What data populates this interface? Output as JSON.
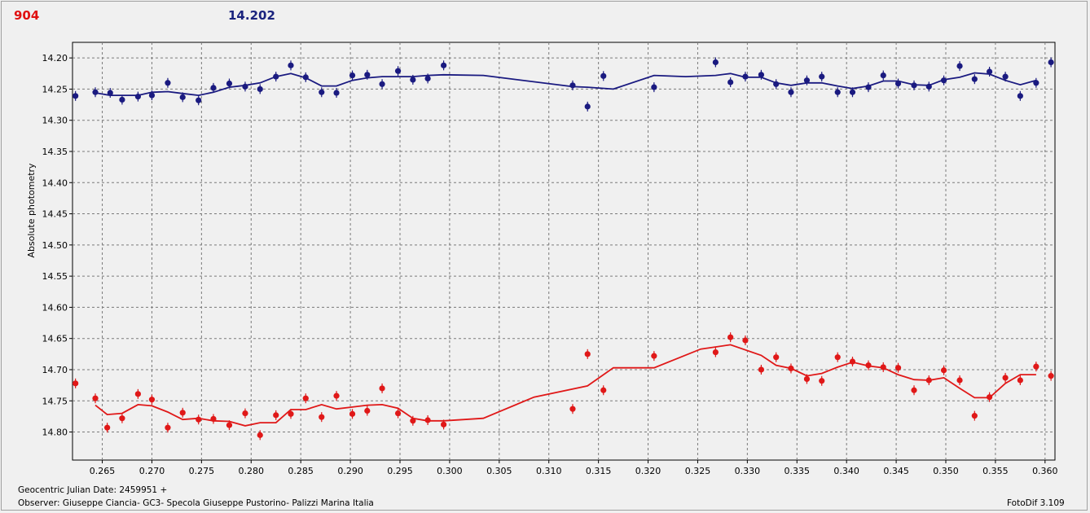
{
  "header": {
    "left_value": "904",
    "right_value": "14.202"
  },
  "footer": {
    "jd_label": "Geocentric Julian Date: 2459951 +",
    "observer": "Observer: Giuseppe Ciancia- GC3- Specola Giuseppe Pustorino- Palizzi Marina Italia",
    "software": "FotoDif 3.109"
  },
  "colors": {
    "blue_series": "#1a1a80",
    "red_series": "#e01818",
    "plot_background": "#f0f0f0",
    "grid": "#7a7a7a"
  },
  "chart_data": {
    "type": "scatter",
    "title": "",
    "xlabel": "",
    "ylabel": "Absolute photometry",
    "xlim": [
      0.262,
      0.361
    ],
    "ylim": [
      14.175,
      14.845
    ],
    "y_inverted": true,
    "grid": true,
    "x_ticks": [
      "0.265",
      "0.270",
      "0.275",
      "0.280",
      "0.285",
      "0.290",
      "0.295",
      "0.300",
      "0.305",
      "0.310",
      "0.315",
      "0.320",
      "0.325",
      "0.330",
      "0.335",
      "0.340",
      "0.345",
      "0.350",
      "0.355",
      "0.360"
    ],
    "y_ticks": [
      "14.20",
      "14.25",
      "14.30",
      "14.35",
      "14.40",
      "14.45",
      "14.50",
      "14.55",
      "14.60",
      "14.65",
      "14.70",
      "14.75",
      "14.80"
    ],
    "series": [
      {
        "color": "#1a1a80",
        "points": [
          [
            0.2623,
            14.261
          ],
          [
            0.2643,
            14.255
          ],
          [
            0.2658,
            14.256
          ],
          [
            0.267,
            14.267
          ],
          [
            0.2686,
            14.262
          ],
          [
            0.27,
            14.26
          ],
          [
            0.2716,
            14.24
          ],
          [
            0.2731,
            14.263
          ],
          [
            0.2747,
            14.268
          ],
          [
            0.2762,
            14.248
          ],
          [
            0.2778,
            14.241
          ],
          [
            0.2794,
            14.246
          ],
          [
            0.2809,
            14.25
          ],
          [
            0.2825,
            14.23
          ],
          [
            0.284,
            14.212
          ],
          [
            0.2855,
            14.231
          ],
          [
            0.2871,
            14.255
          ],
          [
            0.2886,
            14.256
          ],
          [
            0.2902,
            14.228
          ],
          [
            0.2917,
            14.227
          ],
          [
            0.2932,
            14.242
          ],
          [
            0.2948,
            14.221
          ],
          [
            0.2963,
            14.235
          ],
          [
            0.2978,
            14.233
          ],
          [
            0.2994,
            14.212
          ],
          [
            0.3124,
            14.244
          ],
          [
            0.3139,
            14.278
          ],
          [
            0.3155,
            14.229
          ],
          [
            0.3206,
            14.247
          ],
          [
            0.3268,
            14.207
          ],
          [
            0.3283,
            14.239
          ],
          [
            0.3298,
            14.23
          ],
          [
            0.3314,
            14.227
          ],
          [
            0.3329,
            14.242
          ],
          [
            0.3344,
            14.255
          ],
          [
            0.336,
            14.236
          ],
          [
            0.3375,
            14.23
          ],
          [
            0.3391,
            14.255
          ],
          [
            0.3406,
            14.255
          ],
          [
            0.3422,
            14.247
          ],
          [
            0.3437,
            14.228
          ],
          [
            0.3452,
            14.241
          ],
          [
            0.3468,
            14.244
          ],
          [
            0.3483,
            14.246
          ],
          [
            0.3498,
            14.236
          ],
          [
            0.3514,
            14.213
          ],
          [
            0.3529,
            14.234
          ],
          [
            0.3544,
            14.222
          ],
          [
            0.356,
            14.23
          ],
          [
            0.3575,
            14.261
          ],
          [
            0.3591,
            14.24
          ],
          [
            0.3606,
            14.207
          ]
        ],
        "trend": [
          [
            0.2643,
            14.256
          ],
          [
            0.2658,
            14.26
          ],
          [
            0.267,
            14.26
          ],
          [
            0.2686,
            14.26
          ],
          [
            0.27,
            14.255
          ],
          [
            0.2716,
            14.254
          ],
          [
            0.2731,
            14.257
          ],
          [
            0.2747,
            14.26
          ],
          [
            0.2762,
            14.255
          ],
          [
            0.2778,
            14.247
          ],
          [
            0.2794,
            14.244
          ],
          [
            0.2809,
            14.24
          ],
          [
            0.2825,
            14.23
          ],
          [
            0.284,
            14.225
          ],
          [
            0.2855,
            14.232
          ],
          [
            0.2871,
            14.245
          ],
          [
            0.2886,
            14.245
          ],
          [
            0.2902,
            14.236
          ],
          [
            0.2917,
            14.232
          ],
          [
            0.2932,
            14.23
          ],
          [
            0.2948,
            14.23
          ],
          [
            0.2963,
            14.23
          ],
          [
            0.2978,
            14.228
          ],
          [
            0.2994,
            14.227
          ],
          [
            0.3034,
            14.228
          ],
          [
            0.3124,
            14.246
          ],
          [
            0.3139,
            14.247
          ],
          [
            0.3165,
            14.25
          ],
          [
            0.3206,
            14.228
          ],
          [
            0.3238,
            14.23
          ],
          [
            0.3268,
            14.228
          ],
          [
            0.3283,
            14.225
          ],
          [
            0.3298,
            14.231
          ],
          [
            0.3314,
            14.231
          ],
          [
            0.3329,
            14.24
          ],
          [
            0.3344,
            14.244
          ],
          [
            0.336,
            14.24
          ],
          [
            0.3375,
            14.24
          ],
          [
            0.3391,
            14.245
          ],
          [
            0.3406,
            14.249
          ],
          [
            0.3422,
            14.245
          ],
          [
            0.3437,
            14.237
          ],
          [
            0.3452,
            14.237
          ],
          [
            0.3468,
            14.243
          ],
          [
            0.3483,
            14.244
          ],
          [
            0.3498,
            14.235
          ],
          [
            0.3514,
            14.231
          ],
          [
            0.3529,
            14.224
          ],
          [
            0.3544,
            14.226
          ],
          [
            0.356,
            14.236
          ],
          [
            0.3575,
            14.243
          ],
          [
            0.3591,
            14.236
          ]
        ]
      },
      {
        "color": "#e01818",
        "points": [
          [
            0.2623,
            14.722
          ],
          [
            0.2643,
            14.746
          ],
          [
            0.2655,
            14.793
          ],
          [
            0.267,
            14.778
          ],
          [
            0.2686,
            14.739
          ],
          [
            0.27,
            14.748
          ],
          [
            0.2716,
            14.793
          ],
          [
            0.2731,
            14.769
          ],
          [
            0.2747,
            14.78
          ],
          [
            0.2762,
            14.779
          ],
          [
            0.2778,
            14.789
          ],
          [
            0.2794,
            14.77
          ],
          [
            0.2809,
            14.805
          ],
          [
            0.2825,
            14.773
          ],
          [
            0.284,
            14.771
          ],
          [
            0.2855,
            14.746
          ],
          [
            0.2871,
            14.776
          ],
          [
            0.2886,
            14.742
          ],
          [
            0.2902,
            14.771
          ],
          [
            0.2917,
            14.766
          ],
          [
            0.2932,
            14.73
          ],
          [
            0.2948,
            14.77
          ],
          [
            0.2963,
            14.782
          ],
          [
            0.2978,
            14.781
          ],
          [
            0.2994,
            14.788
          ],
          [
            0.3124,
            14.763
          ],
          [
            0.3139,
            14.675
          ],
          [
            0.3155,
            14.733
          ],
          [
            0.3206,
            14.678
          ],
          [
            0.3268,
            14.672
          ],
          [
            0.3283,
            14.648
          ],
          [
            0.3298,
            14.653
          ],
          [
            0.3314,
            14.7
          ],
          [
            0.3329,
            14.68
          ],
          [
            0.3344,
            14.698
          ],
          [
            0.336,
            14.715
          ],
          [
            0.3375,
            14.718
          ],
          [
            0.3391,
            14.68
          ],
          [
            0.3406,
            14.687
          ],
          [
            0.3422,
            14.693
          ],
          [
            0.3437,
            14.696
          ],
          [
            0.3452,
            14.697
          ],
          [
            0.3468,
            14.733
          ],
          [
            0.3483,
            14.717
          ],
          [
            0.3498,
            14.701
          ],
          [
            0.3514,
            14.717
          ],
          [
            0.3529,
            14.774
          ],
          [
            0.3544,
            14.744
          ],
          [
            0.356,
            14.713
          ],
          [
            0.3575,
            14.717
          ],
          [
            0.3591,
            14.695
          ],
          [
            0.3606,
            14.71
          ]
        ],
        "trend": [
          [
            0.2643,
            14.757
          ],
          [
            0.2655,
            14.772
          ],
          [
            0.267,
            14.77
          ],
          [
            0.2686,
            14.756
          ],
          [
            0.27,
            14.758
          ],
          [
            0.2716,
            14.768
          ],
          [
            0.2731,
            14.78
          ],
          [
            0.2747,
            14.778
          ],
          [
            0.2762,
            14.782
          ],
          [
            0.2778,
            14.783
          ],
          [
            0.2794,
            14.79
          ],
          [
            0.2809,
            14.785
          ],
          [
            0.2825,
            14.785
          ],
          [
            0.284,
            14.764
          ],
          [
            0.2855,
            14.764
          ],
          [
            0.2871,
            14.756
          ],
          [
            0.2886,
            14.763
          ],
          [
            0.2902,
            14.76
          ],
          [
            0.2917,
            14.757
          ],
          [
            0.2932,
            14.756
          ],
          [
            0.2948,
            14.762
          ],
          [
            0.2963,
            14.778
          ],
          [
            0.2978,
            14.782
          ],
          [
            0.2994,
            14.782
          ],
          [
            0.3034,
            14.778
          ],
          [
            0.3085,
            14.744
          ],
          [
            0.3139,
            14.726
          ],
          [
            0.3165,
            14.697
          ],
          [
            0.3206,
            14.697
          ],
          [
            0.3253,
            14.667
          ],
          [
            0.3283,
            14.66
          ],
          [
            0.3314,
            14.677
          ],
          [
            0.3329,
            14.693
          ],
          [
            0.3344,
            14.698
          ],
          [
            0.336,
            14.71
          ],
          [
            0.3375,
            14.706
          ],
          [
            0.3391,
            14.696
          ],
          [
            0.3406,
            14.688
          ],
          [
            0.3422,
            14.694
          ],
          [
            0.3437,
            14.697
          ],
          [
            0.3452,
            14.708
          ],
          [
            0.3468,
            14.716
          ],
          [
            0.3483,
            14.717
          ],
          [
            0.3498,
            14.713
          ],
          [
            0.3514,
            14.73
          ],
          [
            0.3529,
            14.745
          ],
          [
            0.3544,
            14.745
          ],
          [
            0.356,
            14.722
          ],
          [
            0.3575,
            14.708
          ],
          [
            0.3591,
            14.708
          ]
        ]
      }
    ]
  }
}
